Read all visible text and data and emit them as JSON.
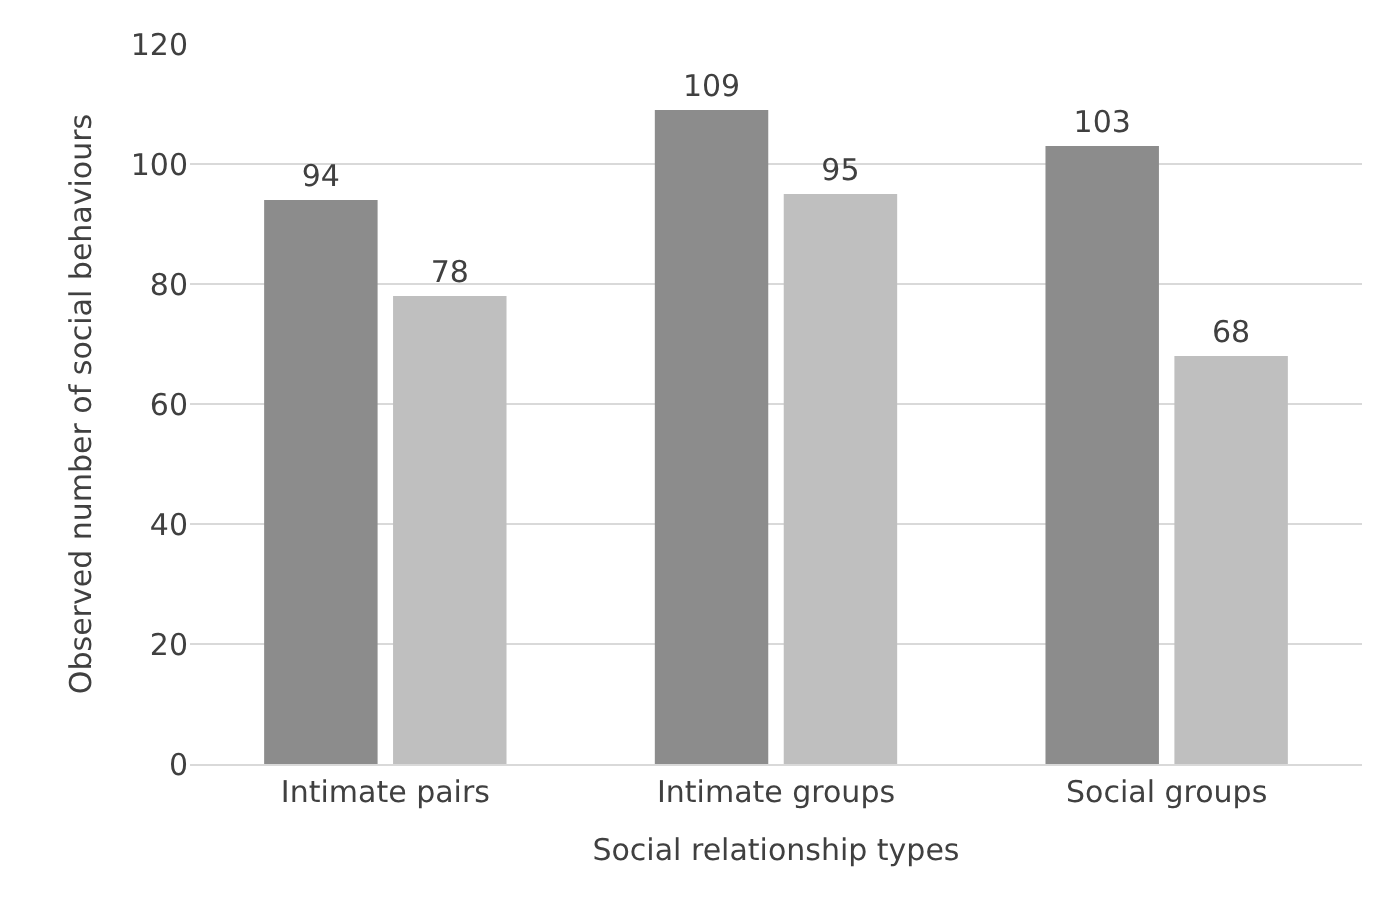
{
  "chart_data": {
    "type": "bar",
    "xlabel": "Social relationship types",
    "ylabel": "Observed number of social behaviours",
    "categories": [
      "Intimate pairs",
      "Intimate groups",
      "Social groups"
    ],
    "series": [
      {
        "color": "#8c8c8c",
        "values": [
          94,
          109,
          103
        ]
      },
      {
        "color": "#bfbfbf",
        "values": [
          78,
          95,
          68
        ]
      }
    ],
    "ylim": [
      0,
      120
    ],
    "yticks": [
      0,
      20,
      40,
      60,
      80,
      100,
      120
    ],
    "grid": "y",
    "data_labels": true,
    "legend": false
  }
}
